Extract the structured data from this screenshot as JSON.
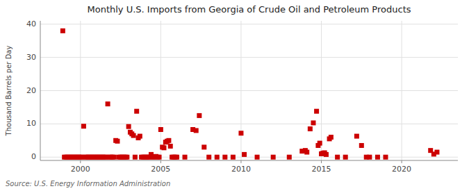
{
  "chart_data": {
    "type": "scatter",
    "title": "Monthly U.S. Imports from Georgia of Crude Oil and Petroleum Products",
    "y_label": "Thousand Barrels per Day",
    "annotations": [
      "Source: U.S. Energy Information Administration"
    ],
    "color": "#cc0000",
    "marker": "square",
    "grid": true,
    "xlim": [
      1997.5,
      2023.5
    ],
    "ylim": [
      -1,
      41
    ],
    "xticks": [
      2000,
      2005,
      2010,
      2015,
      2020
    ],
    "yticks": [
      0,
      10,
      20,
      30,
      40
    ],
    "x": [
      1998.9,
      1999.0,
      1999.1,
      1999.2,
      1999.3,
      1999.4,
      1999.5,
      1999.6,
      1999.7,
      1999.8,
      1999.9,
      2000.0,
      2000.1,
      2000.2,
      2000.3,
      2000.4,
      2000.5,
      2000.6,
      2000.7,
      2000.8,
      2000.9,
      2001.0,
      2001.1,
      2001.2,
      2001.3,
      2001.4,
      2001.5,
      2001.6,
      2001.7,
      2001.8,
      2001.9,
      2002.0,
      2002.1,
      2002.2,
      2002.3,
      2002.4,
      2002.5,
      2002.6,
      2002.7,
      2002.8,
      2002.9,
      2003.0,
      2003.1,
      2003.2,
      2003.3,
      2003.4,
      2003.5,
      2003.6,
      2003.7,
      2003.8,
      2003.9,
      2004.0,
      2004.1,
      2004.2,
      2004.3,
      2004.4,
      2004.5,
      2004.6,
      2004.7,
      2004.8,
      2004.9,
      2005.0,
      2005.1,
      2005.2,
      2005.3,
      2005.4,
      2005.5,
      2005.6,
      2005.7,
      2005.8,
      2005.9,
      2006.0,
      2006.5,
      2007.0,
      2007.2,
      2007.4,
      2007.7,
      2008.0,
      2008.5,
      2009.0,
      2009.5,
      2010.0,
      2010.2,
      2011.0,
      2012.0,
      2013.0,
      2013.8,
      2014.0,
      2014.1,
      2014.3,
      2014.5,
      2014.7,
      2014.8,
      2014.9,
      2015.0,
      2015.1,
      2015.2,
      2015.3,
      2015.5,
      2015.6,
      2016.0,
      2016.5,
      2017.2,
      2017.5,
      2017.8,
      2018.0,
      2018.5,
      2019.0,
      2021.8,
      2022.0,
      2022.2
    ],
    "values": [
      38.0,
      0.0,
      0.0,
      0.0,
      0.0,
      0.0,
      0.0,
      0.0,
      0.0,
      0.0,
      0.0,
      0.0,
      0.0,
      9.3,
      0.0,
      0.0,
      0.0,
      0.0,
      0.0,
      0.0,
      0.0,
      0.0,
      0.0,
      0.0,
      0.0,
      0.0,
      0.0,
      0.0,
      16.0,
      0.0,
      0.0,
      0.0,
      0.0,
      5.0,
      4.8,
      0.0,
      0.0,
      0.0,
      0.0,
      0.0,
      0.0,
      9.2,
      7.5,
      7.0,
      6.5,
      0.0,
      13.8,
      5.8,
      6.3,
      0.0,
      0.0,
      0.0,
      0.0,
      0.0,
      0.0,
      0.8,
      0.0,
      0.0,
      0.2,
      0.0,
      0.0,
      8.3,
      3.0,
      2.8,
      4.5,
      4.8,
      5.0,
      3.3,
      0.0,
      0.0,
      0.0,
      0.0,
      0.0,
      8.3,
      8.0,
      12.5,
      3.0,
      0.0,
      0.0,
      0.0,
      0.0,
      7.2,
      0.8,
      0.0,
      0.0,
      0.0,
      1.8,
      2.0,
      1.5,
      8.5,
      10.3,
      13.8,
      3.5,
      4.2,
      1.0,
      1.2,
      1.3,
      0.8,
      5.5,
      6.0,
      0.0,
      0.0,
      6.3,
      3.5,
      0.0,
      0.0,
      0.0,
      0.0,
      2.0,
      0.9,
      1.5
    ]
  }
}
